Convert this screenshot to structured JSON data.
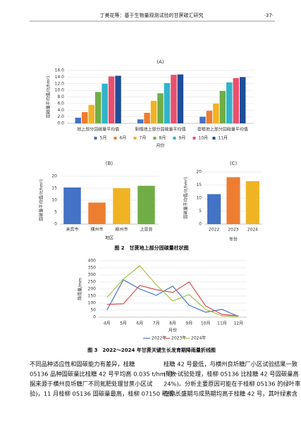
{
  "header": {
    "title": "丁美花等：基于生物量观测试验的甘蔗碳汇研究",
    "page": "·37·"
  },
  "chart_data": [
    {
      "type": "grouped_bar",
      "title": "(A)",
      "y_label": "固碳量平均值/(t/hm²)",
      "x_label": "月份",
      "categories": [
        "地上部分固碳量平均值",
        "新植地上部分固碳量平均值",
        "宿根地上部分固碳量平均值"
      ],
      "series": [
        {
          "name": "5月",
          "color": "#4472c4",
          "values": [
            1.7,
            1.2,
            2.0
          ]
        },
        {
          "name": "6月",
          "color": "#ed7d31",
          "values": [
            3.4,
            3.2,
            3.8
          ]
        },
        {
          "name": "7月",
          "color": "#f0b323",
          "values": [
            5.6,
            6.8,
            6.0
          ]
        },
        {
          "name": "8月",
          "color": "#70ad47",
          "values": [
            9.5,
            9.1,
            9.8
          ]
        },
        {
          "name": "9月",
          "color": "#2fb5c9",
          "values": [
            12.0,
            12.2,
            12.4
          ]
        },
        {
          "name": "10月",
          "color": "#e8506e",
          "values": [
            14.2,
            14.7,
            13.7
          ]
        },
        {
          "name": "11月",
          "color": "#1f4e9a",
          "values": [
            14.4,
            14.8,
            14.0
          ]
        }
      ],
      "ylim": [
        0,
        16
      ],
      "yticks": [
        {
          "value": 0,
          "label": "0.0"
        },
        {
          "value": 2,
          "label": "2.0"
        },
        {
          "value": 4,
          "label": "4.0"
        },
        {
          "value": 6,
          "label": "6.0"
        },
        {
          "value": 8,
          "label": "8.0"
        },
        {
          "value": 10,
          "label": "10.0"
        },
        {
          "value": 12,
          "label": "12.0"
        },
        {
          "value": 14,
          "label": "14.0"
        },
        {
          "value": 16,
          "label": "16.0"
        }
      ],
      "grid": true
    },
    {
      "type": "bar",
      "title": "(B)",
      "y_label": "固碳量平均值/(t/hm²)",
      "x_label": "地区",
      "categories": [
        "来宾市",
        "横州市",
        "柳州市",
        "上思县"
      ],
      "values": [
        15.3,
        9.0,
        15.0,
        16.0
      ],
      "colors": [
        "#4472c4",
        "#ed7d31",
        "#f0b323",
        "#70ad47"
      ],
      "ylim": [
        0,
        20
      ],
      "yticks": [
        0,
        5,
        10,
        15,
        20
      ],
      "grid": true
    },
    {
      "type": "bar",
      "title": "(C)",
      "y_label": "固碳量平均值/(t/hm²)",
      "x_label": "年份",
      "categories": [
        "2022",
        "2023",
        "2024"
      ],
      "values": [
        11.5,
        18.0,
        16.5
      ],
      "colors": [
        "#4472c4",
        "#ed7d31",
        "#f0b323"
      ],
      "ylim": [
        0,
        20
      ],
      "yticks": [
        0,
        5,
        10,
        15,
        20
      ],
      "grid": true
    },
    {
      "type": "line",
      "y_label": "降雨量/mm",
      "x_label": "月份",
      "categories": [
        "4月",
        "5月",
        "6月",
        "7月",
        "8月",
        "9月",
        "10月",
        "11月",
        "12月"
      ],
      "series": [
        {
          "name": "2022年",
          "color": "#4472c4",
          "values": [
            50,
            265,
            200,
            155,
            220,
            85,
            35,
            55,
            5
          ]
        },
        {
          "name": "2023年",
          "color": "#d9534f",
          "values": [
            90,
            95,
            225,
            195,
            175,
            250,
            80,
            20,
            10
          ]
        },
        {
          "name": "2024年",
          "color": "#a5c04a",
          "values": [
            140,
            270,
            365,
            230,
            115,
            160,
            55,
            10,
            5
          ]
        }
      ],
      "ylim": [
        0,
        400
      ],
      "yticks": [
        0,
        50,
        100,
        150,
        200,
        250,
        300,
        350,
        400
      ],
      "grid": true
    }
  ],
  "captions": [
    "图 2　甘蔗地上部分固碳量柱状图",
    "图 3　2022～2024 年甘蔗关键生长发育期降雨量折线图"
  ],
  "body": {
    "left": [
      "不同品种适应性和固碳能力有差异，桂糖",
      "05136 品种固碳量比桂糖 42 号平均高 0.035 t/hm²(数",
      "据来源于横州良圻糖厂不同氮肥处理甘蔗小区试",
      "验)，11 月桂柳 05136 固碳量最高，桂柳 07150 稍低，"
    ],
    "right": [
      "桂糖 42 号最低，与横州良圻糖厂小区试验结果一致",
      "(同一试验处理，桂柳 05136 比桂糖 42 号固碳量高",
      "24%)。分析主要原因可能在于桂柳 05136 的绿叶率",
      "在伸长盛期与成熟期均高于桂糖 42 号，其叶绿素含"
    ]
  }
}
